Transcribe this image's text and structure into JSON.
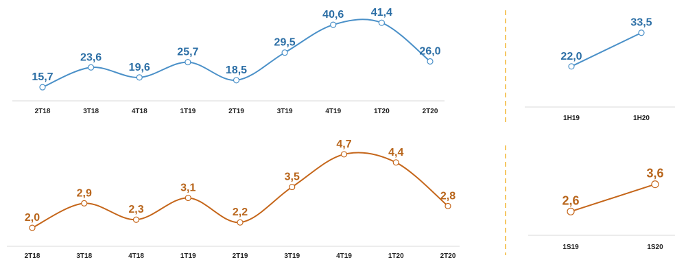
{
  "colors": {
    "blue": "#4a90c8",
    "blue_label": "#2b6ea5",
    "orange": "#c5661a",
    "orange_label": "#b8651b",
    "divider": "#f2b632",
    "axis": "#d9d9d9"
  },
  "chart_data": [
    {
      "type": "line",
      "categories": [
        "2T18",
        "3T18",
        "4T18",
        "1T19",
        "2T19",
        "3T19",
        "4T19",
        "1T20",
        "2T20"
      ],
      "values": [
        15.7,
        23.6,
        19.6,
        25.7,
        18.5,
        29.5,
        40.6,
        41.4,
        26.0
      ],
      "labels": [
        "15,7",
        "23,6",
        "19,6",
        "25,7",
        "18,5",
        "29,5",
        "40,6",
        "41,4",
        "26,0"
      ],
      "ylim": [
        10,
        45
      ],
      "title": "",
      "xlabel": "",
      "ylabel": ""
    },
    {
      "type": "line",
      "categories": [
        "1H19",
        "1H20"
      ],
      "values": [
        22.0,
        33.5
      ],
      "labels": [
        "22,0",
        "33,5"
      ],
      "ylim": [
        10,
        40
      ],
      "title": "",
      "xlabel": "",
      "ylabel": ""
    },
    {
      "type": "line",
      "categories": [
        "2T18",
        "3T18",
        "4T18",
        "1T19",
        "2T19",
        "3T19",
        "4T19",
        "1T20",
        "2T20"
      ],
      "values": [
        2.0,
        2.9,
        2.3,
        3.1,
        2.2,
        3.5,
        4.7,
        4.4,
        2.8
      ],
      "labels": [
        "2,0",
        "2,9",
        "2,3",
        "3,1",
        "2,2",
        "3,5",
        "4,7",
        "4,4",
        "2,8"
      ],
      "ylim": [
        1.5,
        5.0
      ],
      "title": "",
      "xlabel": "",
      "ylabel": ""
    },
    {
      "type": "line",
      "categories": [
        "1S19",
        "1S20"
      ],
      "values": [
        2.6,
        3.6
      ],
      "labels": [
        "2,6",
        "3,6"
      ],
      "ylim": [
        1.5,
        5.0
      ],
      "title": "",
      "xlabel": "",
      "ylabel": ""
    }
  ]
}
